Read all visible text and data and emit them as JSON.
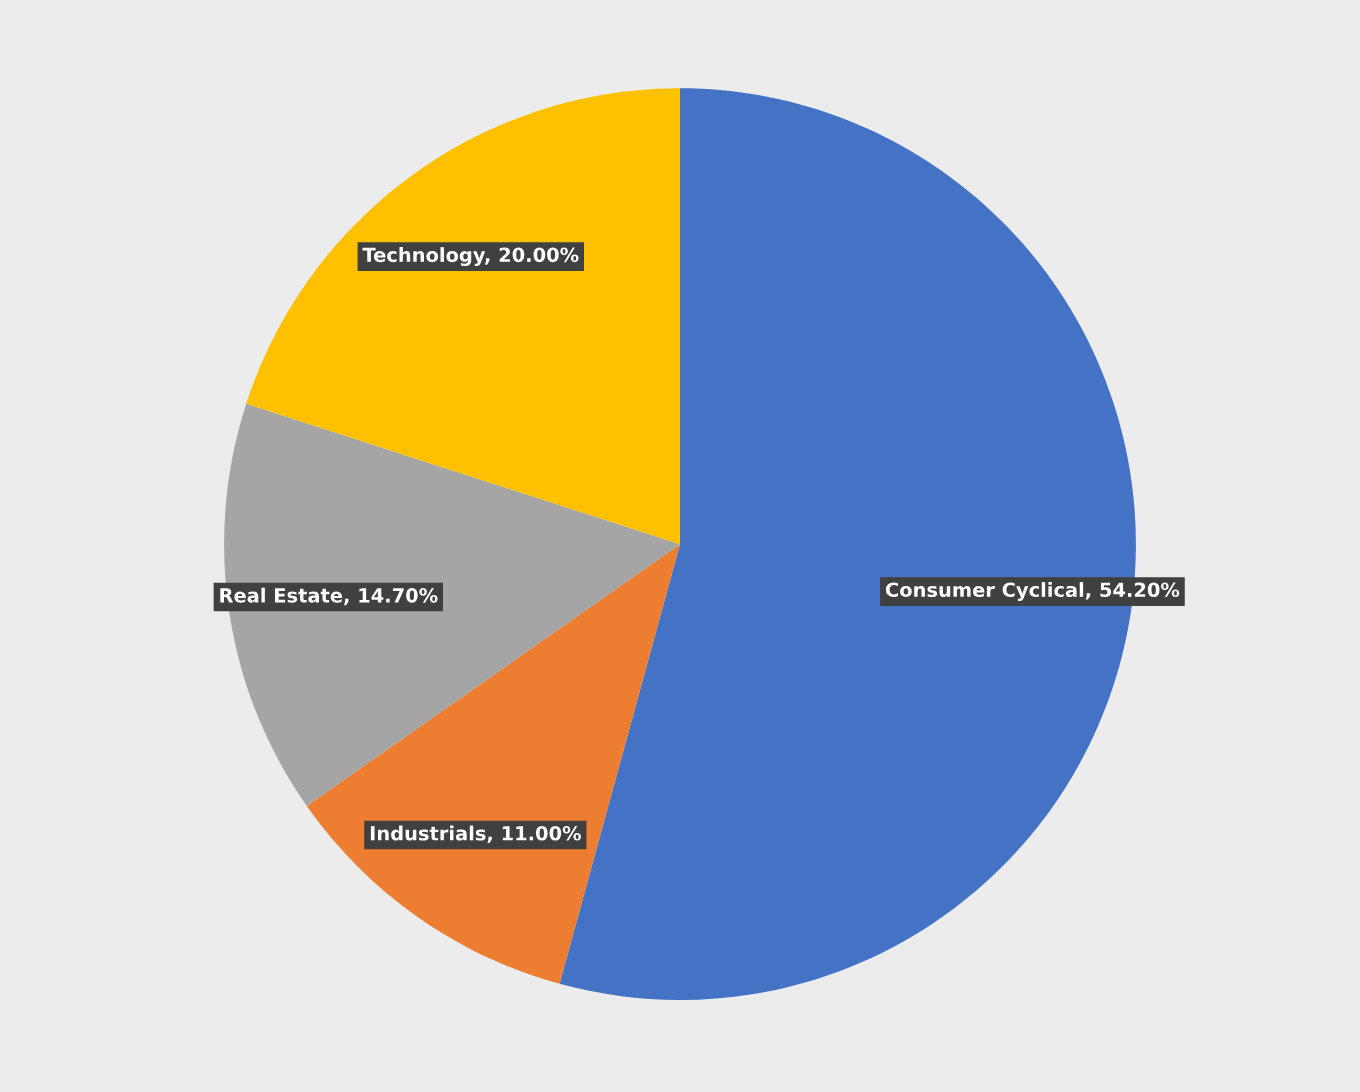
{
  "chart_data": {
    "type": "pie",
    "categories": [
      "Consumer Cyclical",
      "Industrials",
      "Real Estate",
      "Technology"
    ],
    "values": [
      54.2,
      11.0,
      14.7,
      20.0
    ],
    "colors": [
      "#4472c4",
      "#ed7d31",
      "#a5a5a5",
      "#ffc000"
    ],
    "value_labels": [
      "54.20%",
      "11.00%",
      "14.70%",
      "20.00%"
    ]
  }
}
